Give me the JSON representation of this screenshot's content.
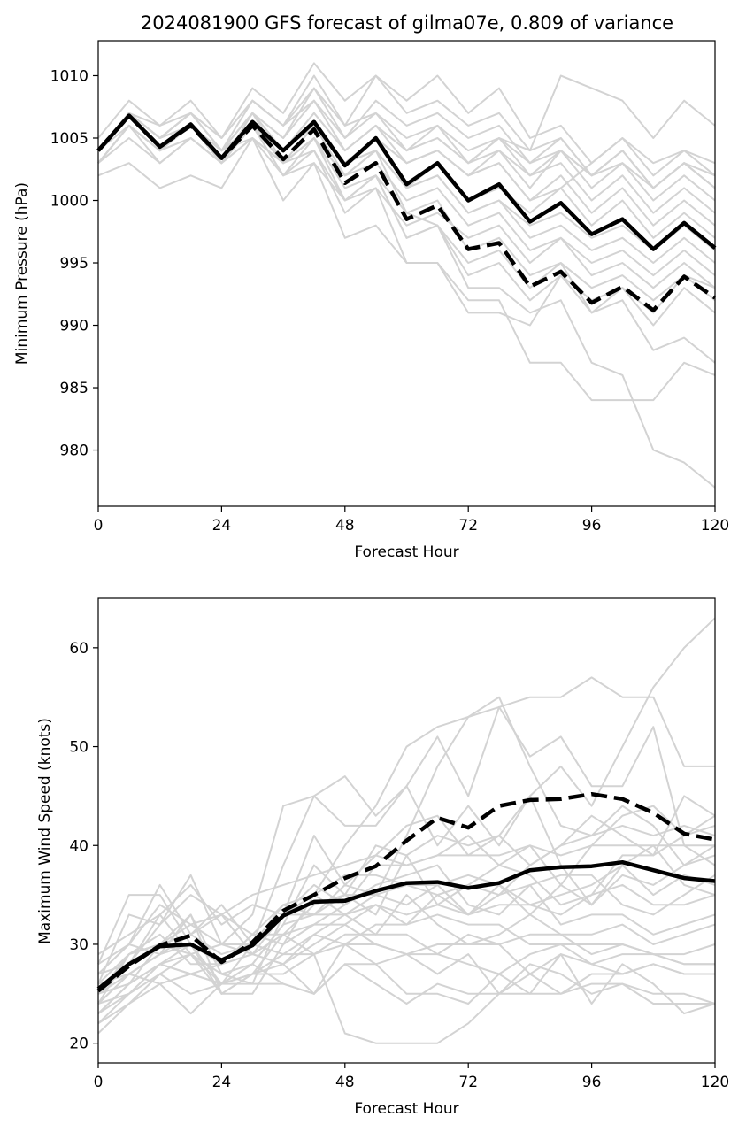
{
  "chart_data": [
    {
      "type": "line",
      "title": "2024081900 GFS forecast of gilma07e, 0.809 of variance",
      "xlabel": "Forecast Hour",
      "ylabel": "Minimum Pressure (hPa)",
      "xlim": [
        0,
        120
      ],
      "ylim": [
        975.5,
        1012.8
      ],
      "xticks": [
        "0",
        "24",
        "48",
        "72",
        "96",
        "120"
      ],
      "yticks": [
        "980",
        "985",
        "990",
        "995",
        "1000",
        "1005",
        "1010"
      ],
      "grid": false,
      "legend": "none",
      "colors": {
        "ensemble": "#d3d3d3",
        "highlight": "#000000"
      },
      "x": [
        0,
        6,
        12,
        18,
        24,
        30,
        36,
        42,
        48,
        54,
        60,
        66,
        72,
        78,
        84,
        90,
        96,
        102,
        108,
        114,
        120
      ],
      "series": [
        {
          "style": "solid",
          "values": [
            1004,
            1006.8,
            1004.3,
            1006.1,
            1003.4,
            1006.3,
            1004,
            1006.3,
            1002.8,
            1005,
            1001.3,
            1003,
            1000,
            1001.3,
            998.3,
            999.8,
            997.3,
            998.5,
            996.1,
            998.2,
            996.2
          ]
        },
        {
          "style": "dashed",
          "values": [
            1004,
            1006.8,
            1004.3,
            1006,
            1003.4,
            1006,
            1003.3,
            1005.7,
            1001.4,
            1003,
            998.5,
            999.6,
            996.1,
            996.6,
            993.1,
            994.3,
            991.8,
            993.1,
            991.2,
            993.9,
            992.2
          ]
        }
      ],
      "ensemble": [
        [
          1005,
          1008,
          1006,
          1008,
          1005,
          1009,
          1007,
          1011,
          1008,
          1010,
          1008,
          1010,
          1007,
          1009,
          1005,
          1006,
          1003,
          1005,
          1002,
          1004,
          1002
        ],
        [
          1004,
          1007,
          1005,
          1007,
          1004,
          1008,
          1006,
          1010,
          1006,
          1010,
          1007,
          1008,
          1006,
          1007,
          1004,
          1005,
          1002,
          1004,
          1001,
          1003,
          1001
        ],
        [
          1003,
          1006,
          1004,
          1006,
          1003,
          1007,
          1005,
          1009,
          1005,
          1008,
          1006,
          1007,
          1005,
          1006,
          1003,
          1004,
          1001,
          1003,
          1000,
          1002,
          1000
        ],
        [
          1004,
          1007,
          1005,
          1007,
          1005,
          1008,
          1006,
          1009,
          1006,
          1007,
          1005,
          1006,
          1004,
          1005,
          1002,
          1004,
          1002,
          1003,
          1001,
          1003,
          1002
        ],
        [
          1003,
          1006,
          1004,
          1005,
          1003,
          1006,
          1004,
          1007,
          1004,
          1006,
          1004,
          1005,
          1003,
          1004,
          1002,
          1003,
          1000,
          1002,
          999,
          1001,
          999
        ],
        [
          1002,
          1003,
          1001,
          1002,
          1001,
          1005,
          1003,
          1006,
          1003,
          1005,
          1003,
          1004,
          1002,
          1004,
          1001,
          1004,
          1002,
          1004,
          1001,
          1003,
          1001
        ],
        [
          1003,
          1005,
          1003,
          1005,
          1003,
          1006,
          1004,
          1006,
          1003,
          1005,
          1003,
          1004,
          1002,
          1003,
          1000,
          1002,
          999,
          1001,
          998,
          1000,
          998
        ],
        [
          1004,
          1006,
          1004,
          1006,
          1004,
          1005,
          1003,
          1005,
          1002,
          1004,
          1001,
          1002,
          999,
          1000,
          998,
          999,
          997,
          998,
          996,
          998,
          996
        ],
        [
          1004,
          1007,
          1005,
          1006,
          1004,
          1007,
          1004,
          1006,
          1003,
          1004,
          1001,
          1002,
          999,
          1000,
          997,
          998,
          996,
          997,
          995,
          997,
          995
        ],
        [
          1003,
          1006,
          1004,
          1006,
          1004,
          1006,
          1003,
          1005,
          1002,
          1003,
          1000,
          1001,
          998,
          999,
          996,
          997,
          995,
          996,
          994,
          996,
          994
        ],
        [
          1004,
          1007,
          1005,
          1006,
          1004,
          1006,
          1002,
          1004,
          999,
          1001,
          998,
          999,
          997,
          998,
          995,
          997,
          994,
          995,
          993,
          995,
          993
        ],
        [
          1003,
          1006,
          1004,
          1006,
          1003,
          1005,
          1002,
          1003,
          997,
          998,
          995,
          995,
          991,
          991,
          990,
          994,
          991,
          993,
          991,
          994,
          992
        ],
        [
          1004,
          1007,
          1005,
          1007,
          1004,
          1006,
          1003,
          1005,
          1000,
          1002,
          997,
          998,
          994,
          995,
          992,
          994,
          992,
          993,
          990,
          993,
          991
        ],
        [
          1003,
          1006,
          1003,
          1005,
          1003,
          1006,
          1003,
          1004,
          1000,
          1001,
          995,
          995,
          992,
          992,
          987,
          987,
          984,
          984,
          984,
          987,
          986
        ],
        [
          1003,
          1006,
          1004,
          1006,
          1003,
          1006,
          1002,
          1005,
          1001,
          1002,
          999,
          1000,
          996,
          997,
          994,
          995,
          991,
          992,
          988,
          989,
          987
        ],
        [
          1004,
          1007,
          1005,
          1007,
          1004,
          1007,
          1003,
          1006,
          1002,
          1004,
          999,
          998,
          993,
          993,
          991,
          992,
          987,
          986,
          980,
          979,
          977
        ],
        [
          1004,
          1007,
          1005,
          1006,
          1004,
          1007,
          1004,
          1006,
          1003,
          1004,
          1001,
          1003,
          1000,
          1001,
          999,
          1001,
          1003,
          1005,
          1003,
          1004,
          1003
        ],
        [
          1003,
          1006,
          1004,
          1005,
          1003,
          1005,
          1000,
          1003,
          1000,
          1002,
          997,
          998,
          995,
          996,
          993,
          995,
          993,
          994,
          992,
          994,
          993
        ],
        [
          1004,
          1007,
          1005,
          1007,
          1004,
          1007,
          1005,
          1008,
          1004,
          1006,
          1004,
          1005,
          1003,
          1005,
          1003,
          1005,
          1002,
          1004,
          1001,
          1003,
          1001
        ],
        [
          1004,
          1007,
          1006,
          1007,
          1005,
          1008,
          1006,
          1008,
          1005,
          1007,
          1004,
          1006,
          1003,
          1005,
          1004,
          1010,
          1009,
          1008,
          1005,
          1008,
          1006
        ],
        [
          1003,
          1006,
          1004,
          1006,
          1003,
          1006,
          1004,
          1007,
          1004,
          1006,
          1003,
          1004,
          1002,
          1003,
          1000,
          1001,
          998,
          1000,
          997,
          999,
          997
        ]
      ]
    },
    {
      "type": "line",
      "title": "",
      "xlabel": "Forecast Hour",
      "ylabel": "Maximum Wind Speed (knots)",
      "xlim": [
        0,
        120
      ],
      "ylim": [
        18,
        65
      ],
      "xticks": [
        "0",
        "24",
        "48",
        "72",
        "96",
        "120"
      ],
      "yticks": [
        "20",
        "30",
        "40",
        "50",
        "60"
      ],
      "grid": false,
      "legend": "none",
      "colors": {
        "ensemble": "#d3d3d3",
        "highlight": "#000000"
      },
      "x": [
        0,
        6,
        12,
        18,
        24,
        30,
        36,
        42,
        48,
        54,
        60,
        66,
        72,
        78,
        84,
        90,
        96,
        102,
        108,
        114,
        120
      ],
      "series": [
        {
          "style": "solid",
          "values": [
            25.5,
            28,
            29.8,
            30,
            28.4,
            29.9,
            32.9,
            34.3,
            34.4,
            35.4,
            36.2,
            36.3,
            35.7,
            36.2,
            37.5,
            37.8,
            37.9,
            38.3,
            37.5,
            36.7,
            36.4
          ]
        },
        {
          "style": "dashed",
          "values": [
            25.3,
            27.8,
            29.9,
            30.9,
            28.2,
            30.2,
            33.4,
            35,
            36.7,
            37.9,
            40.5,
            42.8,
            41.8,
            44,
            44.6,
            44.7,
            45.2,
            44.7,
            43.3,
            41.2,
            40.6
          ]
        }
      ],
      "ensemble": [
        [
          28,
          35,
          35,
          30,
          25,
          25,
          30,
          35,
          40,
          44,
          50,
          52,
          53,
          54,
          55,
          55,
          57,
          55,
          55,
          48,
          48
        ],
        [
          27,
          30,
          36,
          31,
          34,
          30,
          38,
          45,
          42,
          42,
          46,
          51,
          45,
          54,
          49,
          51,
          46,
          46,
          52,
          40,
          38
        ],
        [
          26,
          33,
          32,
          37,
          30,
          33,
          44,
          45,
          47,
          43,
          46,
          40,
          44,
          40,
          45,
          48,
          44,
          50,
          56,
          60,
          63
        ],
        [
          25,
          29,
          31,
          28,
          28,
          31,
          34,
          35,
          33,
          35,
          41,
          48,
          53,
          55,
          48,
          42,
          41,
          44,
          42,
          38,
          40
        ],
        [
          24,
          27,
          29,
          33,
          27,
          26,
          33,
          41,
          36,
          39,
          42,
          43,
          39,
          41,
          45,
          38,
          34,
          38,
          40,
          36,
          35
        ],
        [
          23,
          26,
          28,
          30,
          26,
          28,
          32,
          38,
          35,
          33,
          39,
          41,
          40,
          41,
          38,
          40,
          43,
          41,
          39,
          41,
          43
        ],
        [
          27,
          28,
          33,
          29,
          30,
          29,
          31,
          34,
          35,
          40,
          39,
          34,
          33,
          36,
          33,
          36,
          40,
          43,
          44,
          41,
          42
        ],
        [
          29,
          31,
          33,
          36,
          32,
          34,
          33,
          36,
          34,
          38,
          38,
          39,
          41,
          38,
          37,
          34,
          35,
          39,
          39,
          45,
          43
        ],
        [
          25,
          28,
          30,
          31,
          29,
          30,
          33,
          35,
          37,
          37,
          36,
          35,
          36,
          38,
          40,
          36,
          34,
          37,
          36,
          38,
          39
        ],
        [
          26,
          29,
          30,
          29,
          27,
          28,
          32,
          33,
          35,
          35,
          34,
          36,
          37,
          36,
          34,
          35,
          36,
          38,
          35,
          37,
          36
        ],
        [
          24,
          27,
          29,
          30,
          28,
          31,
          30,
          32,
          34,
          36,
          37,
          38,
          34,
          33,
          36,
          37,
          37,
          34,
          33,
          35,
          37
        ],
        [
          25,
          28,
          32,
          35,
          33,
          29,
          33,
          33,
          36,
          35,
          36,
          36,
          33,
          34,
          34,
          33,
          35,
          36,
          34,
          34,
          35
        ],
        [
          22,
          25,
          28,
          29,
          25,
          27,
          31,
          32,
          32,
          34,
          33,
          34,
          36,
          35,
          36,
          32,
          33,
          33,
          31,
          32,
          33
        ],
        [
          23,
          26,
          30,
          33,
          25,
          27,
          29,
          31,
          33,
          31,
          35,
          32,
          30,
          31,
          33,
          31,
          31,
          32,
          30,
          31,
          32
        ],
        [
          21,
          24,
          27,
          29,
          26,
          27,
          28,
          31,
          30,
          32,
          32,
          33,
          32,
          32,
          30,
          30,
          30,
          30,
          29,
          29,
          30
        ],
        [
          28,
          30,
          29,
          31,
          33,
          31,
          31,
          29,
          31,
          31,
          31,
          29,
          31,
          30,
          31,
          31,
          29,
          30,
          29,
          28,
          28
        ],
        [
          25,
          26,
          28,
          27,
          28,
          29,
          28,
          30,
          32,
          30,
          29,
          30,
          30,
          30,
          27,
          29,
          28,
          27,
          28,
          27,
          27
        ],
        [
          24,
          25,
          27,
          25,
          26,
          27,
          27,
          29,
          30,
          30,
          29,
          29,
          28,
          27,
          25,
          25,
          27,
          27,
          28,
          27,
          27
        ],
        [
          25,
          27,
          26,
          23,
          26,
          26,
          26,
          25,
          30,
          28,
          29,
          27,
          29,
          25,
          25,
          29,
          24,
          28,
          26,
          23,
          24
        ],
        [
          22,
          24,
          26,
          27,
          26,
          30,
          29,
          29,
          21,
          20,
          20,
          20,
          22,
          25,
          27,
          25,
          26,
          26,
          24,
          24,
          24
        ],
        [
          26,
          27,
          29,
          30,
          28,
          29,
          28,
          25,
          28,
          26,
          24,
          26,
          25,
          25,
          28,
          27,
          25,
          26,
          25,
          25,
          24
        ],
        [
          23,
          25,
          28,
          27,
          26,
          28,
          26,
          25,
          28,
          28,
          25,
          25,
          24,
          27,
          29,
          30,
          28,
          29,
          29,
          28,
          28
        ],
        [
          24,
          29,
          30,
          32,
          30,
          30,
          34,
          33,
          33,
          34,
          32,
          35,
          33,
          35,
          38,
          40,
          41,
          42,
          41,
          42,
          41
        ],
        [
          27,
          30,
          34,
          32,
          33,
          35,
          36,
          37,
          38,
          39,
          38,
          39,
          39,
          39,
          40,
          39,
          40,
          40,
          40,
          40,
          40
        ]
      ]
    }
  ]
}
